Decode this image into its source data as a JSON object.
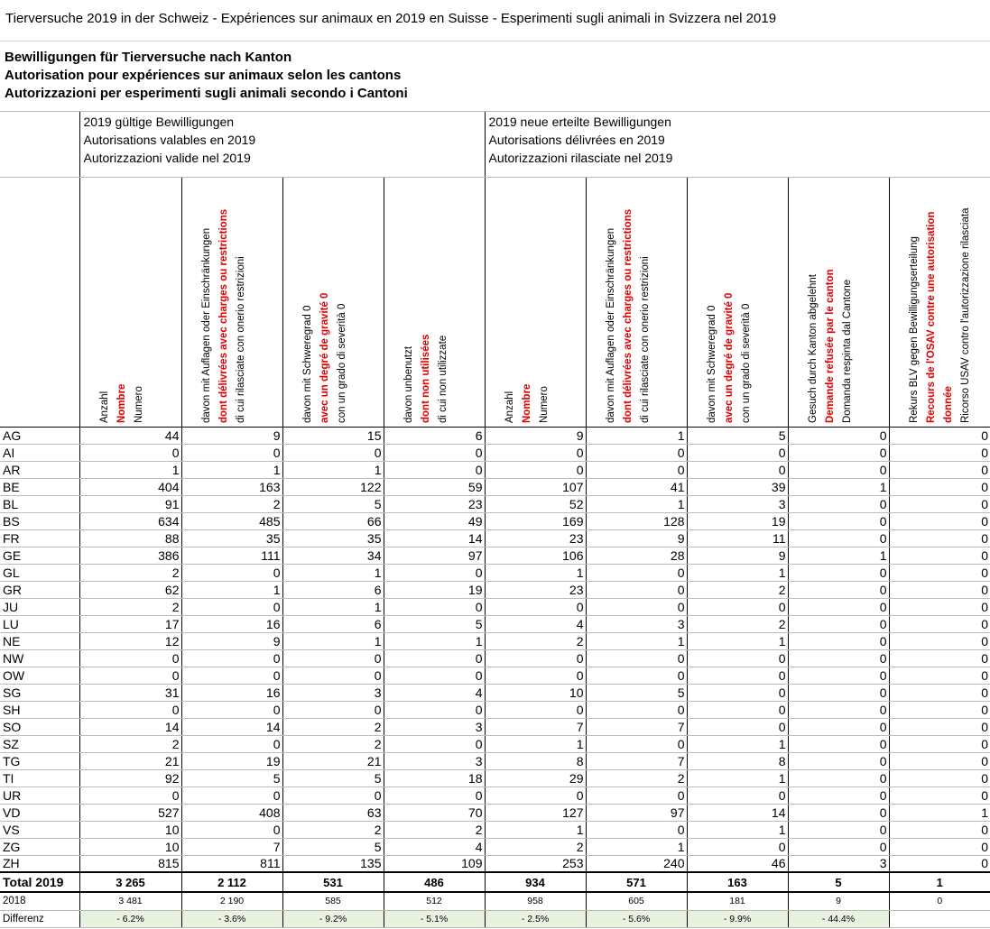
{
  "top_title": "Tierversuche 2019 in der Schweiz - Expériences sur animaux en 2019 en Suisse - Esperimenti sugli animali in Svizzera nel 2019",
  "titles": [
    "Bewilligungen für Tierversuche nach Kanton",
    "Autorisation pour expériences sur animaux selon les cantons",
    "Autorizzazioni per esperimenti sugli animali secondo i Cantoni"
  ],
  "group_headers": [
    {
      "lines": [
        "2019 gültige Bewilligungen",
        "Autorisations valables en 2019",
        "Autorizzazioni valide nel 2019"
      ]
    },
    {
      "lines": [
        "2019 neue erteilte Bewilligungen",
        "Autorisations délivrées en 2019",
        "Autorizzazioni rilasciate nel 2019"
      ]
    }
  ],
  "columns": [
    {
      "de": "Anzahl",
      "fr": "Nombre",
      "it": "Numero"
    },
    {
      "de": "davon mit Auflagen oder Einschränkungen",
      "fr": "dont délivrées avec charges ou restrictions",
      "it": "di cui rilasciate con onerio restrizioni"
    },
    {
      "de": "davon mit Schweregrad 0",
      "fr": "avec un degré de gravité  0",
      "it": "con un grado di severità 0"
    },
    {
      "de": "davon unbenutzt",
      "fr": "dont non utilisées",
      "it": "di cui non utilizzate"
    },
    {
      "de": "Anzahl",
      "fr": "Nombre",
      "it": "Numero"
    },
    {
      "de": "davon mit Auflagen oder Einschränkungen",
      "fr": "dont délivrées avec charges ou restrictions",
      "it": "di cui rilasciate con onerio restrizioni"
    },
    {
      "de": "davon mit Schweregrad 0",
      "fr": "avec un degré de gravité  0",
      "it": "con un grado di severità 0"
    },
    {
      "de": "Gesuch durch Kanton abgelehnt",
      "fr": "Demande refusée par le canton",
      "it": "Domanda respinta dal Cantone"
    },
    {
      "de": "Rekurs BLV gegen Bewilligungserteilung",
      "fr": "Recours de l'OSAV contre une autorisation",
      "fr2": "donnée",
      "it": "Ricorso USAV contro l'autorizzazione rilasciata"
    }
  ],
  "rows": [
    {
      "canton": "AG",
      "values": [
        "44",
        "9",
        "15",
        "6",
        "9",
        "1",
        "5",
        "0",
        "0"
      ]
    },
    {
      "canton": "AI",
      "values": [
        "0",
        "0",
        "0",
        "0",
        "0",
        "0",
        "0",
        "0",
        "0"
      ]
    },
    {
      "canton": "AR",
      "values": [
        "1",
        "1",
        "1",
        "0",
        "0",
        "0",
        "0",
        "0",
        "0"
      ]
    },
    {
      "canton": "BE",
      "values": [
        "404",
        "163",
        "122",
        "59",
        "107",
        "41",
        "39",
        "1",
        "0"
      ]
    },
    {
      "canton": "BL",
      "values": [
        "91",
        "2",
        "5",
        "23",
        "52",
        "1",
        "3",
        "0",
        "0"
      ]
    },
    {
      "canton": "BS",
      "values": [
        "634",
        "485",
        "66",
        "49",
        "169",
        "128",
        "19",
        "0",
        "0"
      ]
    },
    {
      "canton": "FR",
      "values": [
        "88",
        "35",
        "35",
        "14",
        "23",
        "9",
        "11",
        "0",
        "0"
      ]
    },
    {
      "canton": "GE",
      "values": [
        "386",
        "111",
        "34",
        "97",
        "106",
        "28",
        "9",
        "1",
        "0"
      ]
    },
    {
      "canton": "GL",
      "values": [
        "2",
        "0",
        "1",
        "0",
        "1",
        "0",
        "1",
        "0",
        "0"
      ]
    },
    {
      "canton": "GR",
      "values": [
        "62",
        "1",
        "6",
        "19",
        "23",
        "0",
        "2",
        "0",
        "0"
      ]
    },
    {
      "canton": "JU",
      "values": [
        "2",
        "0",
        "1",
        "0",
        "0",
        "0",
        "0",
        "0",
        "0"
      ]
    },
    {
      "canton": "LU",
      "values": [
        "17",
        "16",
        "6",
        "5",
        "4",
        "3",
        "2",
        "0",
        "0"
      ]
    },
    {
      "canton": "NE",
      "values": [
        "12",
        "9",
        "1",
        "1",
        "2",
        "1",
        "1",
        "0",
        "0"
      ]
    },
    {
      "canton": "NW",
      "values": [
        "0",
        "0",
        "0",
        "0",
        "0",
        "0",
        "0",
        "0",
        "0"
      ]
    },
    {
      "canton": "OW",
      "values": [
        "0",
        "0",
        "0",
        "0",
        "0",
        "0",
        "0",
        "0",
        "0"
      ]
    },
    {
      "canton": "SG",
      "values": [
        "31",
        "16",
        "3",
        "4",
        "10",
        "5",
        "0",
        "0",
        "0"
      ]
    },
    {
      "canton": "SH",
      "values": [
        "0",
        "0",
        "0",
        "0",
        "0",
        "0",
        "0",
        "0",
        "0"
      ]
    },
    {
      "canton": "SO",
      "values": [
        "14",
        "14",
        "2",
        "3",
        "7",
        "7",
        "0",
        "0",
        "0"
      ]
    },
    {
      "canton": "SZ",
      "values": [
        "2",
        "0",
        "2",
        "0",
        "1",
        "0",
        "1",
        "0",
        "0"
      ]
    },
    {
      "canton": "TG",
      "values": [
        "21",
        "19",
        "21",
        "3",
        "8",
        "7",
        "8",
        "0",
        "0"
      ]
    },
    {
      "canton": "TI",
      "values": [
        "92",
        "5",
        "5",
        "18",
        "29",
        "2",
        "1",
        "0",
        "0"
      ]
    },
    {
      "canton": "UR",
      "values": [
        "0",
        "0",
        "0",
        "0",
        "0",
        "0",
        "0",
        "0",
        "0"
      ]
    },
    {
      "canton": "VD",
      "values": [
        "527",
        "408",
        "63",
        "70",
        "127",
        "97",
        "14",
        "0",
        "1"
      ]
    },
    {
      "canton": "VS",
      "values": [
        "10",
        "0",
        "2",
        "2",
        "1",
        "0",
        "1",
        "0",
        "0"
      ]
    },
    {
      "canton": "ZG",
      "values": [
        "10",
        "7",
        "5",
        "4",
        "2",
        "1",
        "0",
        "0",
        "0"
      ]
    },
    {
      "canton": "ZH",
      "values": [
        "815",
        "811",
        "135",
        "109",
        "253",
        "240",
        "46",
        "3",
        "0"
      ]
    }
  ],
  "total": {
    "label": "Total 2019",
    "values": [
      "3 265",
      "2 112",
      "531",
      "486",
      "934",
      "571",
      "163",
      "5",
      "1"
    ]
  },
  "prev_year": {
    "label": "2018",
    "values": [
      "3 481",
      "2 190",
      "585",
      "512",
      "958",
      "605",
      "181",
      "9",
      "0"
    ]
  },
  "difference": {
    "label": "Differenz",
    "values": [
      "- 6.2%",
      "- 3.6%",
      "- 9.2%",
      "- 5.1%",
      "- 2.5%",
      "- 5.6%",
      "- 9.9%",
      "- 44.4%",
      ""
    ]
  }
}
